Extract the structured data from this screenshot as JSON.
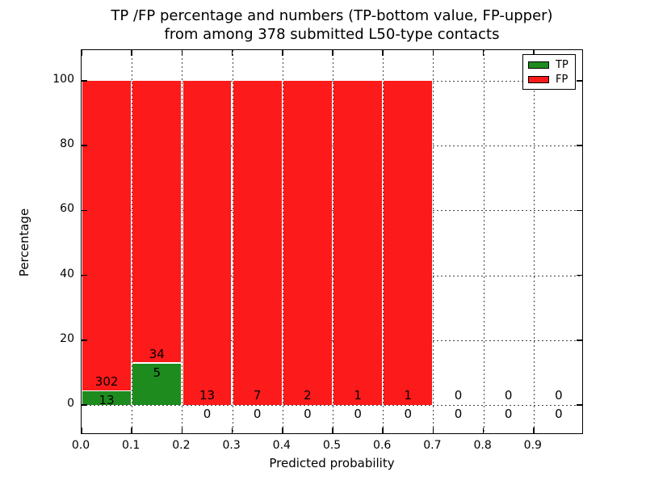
{
  "title": {
    "line1": "TP /FP percentage and numbers (TP-bottom value, FP-upper)",
    "line2": "from among 378 submitted L50-type contacts"
  },
  "axes": {
    "xlabel": "Predicted probability",
    "ylabel": "Percentage",
    "x_tick_labels": [
      "0.0",
      "0.1",
      "0.2",
      "0.3",
      "0.4",
      "0.5",
      "0.6",
      "0.7",
      "0.8",
      "0.9"
    ],
    "y_tick_labels": [
      "0",
      "20",
      "40",
      "60",
      "80",
      "100"
    ],
    "y_tick_values": [
      0,
      20,
      40,
      60,
      80,
      100
    ]
  },
  "legend": {
    "items": [
      {
        "label": "TP",
        "color": "#1e8b1e"
      },
      {
        "label": "FP",
        "color": "#fc1a1a"
      }
    ]
  },
  "colors": {
    "tp": "#1e8b1e",
    "fp": "#fc1a1a",
    "grid": "#444444",
    "frame": "#000000"
  },
  "chart_data": {
    "type": "bar",
    "stacked": true,
    "title": "TP /FP percentage and numbers (TP-bottom value, FP-upper) from among 378 submitted L50-type contacts",
    "xlabel": "Predicted probability",
    "ylabel": "Percentage",
    "total_contacts": 378,
    "bin_edges": [
      0.0,
      0.1,
      0.2,
      0.3,
      0.4,
      0.5,
      0.6,
      0.7,
      0.8,
      0.9,
      1.0
    ],
    "categories": [
      "0.0-0.1",
      "0.1-0.2",
      "0.2-0.3",
      "0.3-0.4",
      "0.4-0.5",
      "0.5-0.6",
      "0.6-0.7",
      "0.7-0.8",
      "0.8-0.9",
      "0.9-1.0"
    ],
    "series": [
      {
        "name": "TP",
        "position": "bottom",
        "counts": [
          13,
          5,
          0,
          0,
          0,
          0,
          0,
          0,
          0,
          0
        ],
        "percent": [
          4.13,
          12.82,
          0,
          0,
          0,
          0,
          0,
          0,
          0,
          0
        ],
        "color": "#1e8b1e"
      },
      {
        "name": "FP",
        "position": "upper",
        "counts": [
          302,
          34,
          13,
          7,
          2,
          1,
          1,
          0,
          0,
          0
        ],
        "percent": [
          95.87,
          87.18,
          100,
          100,
          100,
          100,
          100,
          0,
          0,
          0
        ],
        "color": "#fc1a1a"
      }
    ],
    "xlim": [
      0.0,
      1.0
    ],
    "ylim": [
      -10,
      110
    ],
    "grid": true,
    "grid_style": "dotted",
    "legend_position": "upper right"
  }
}
